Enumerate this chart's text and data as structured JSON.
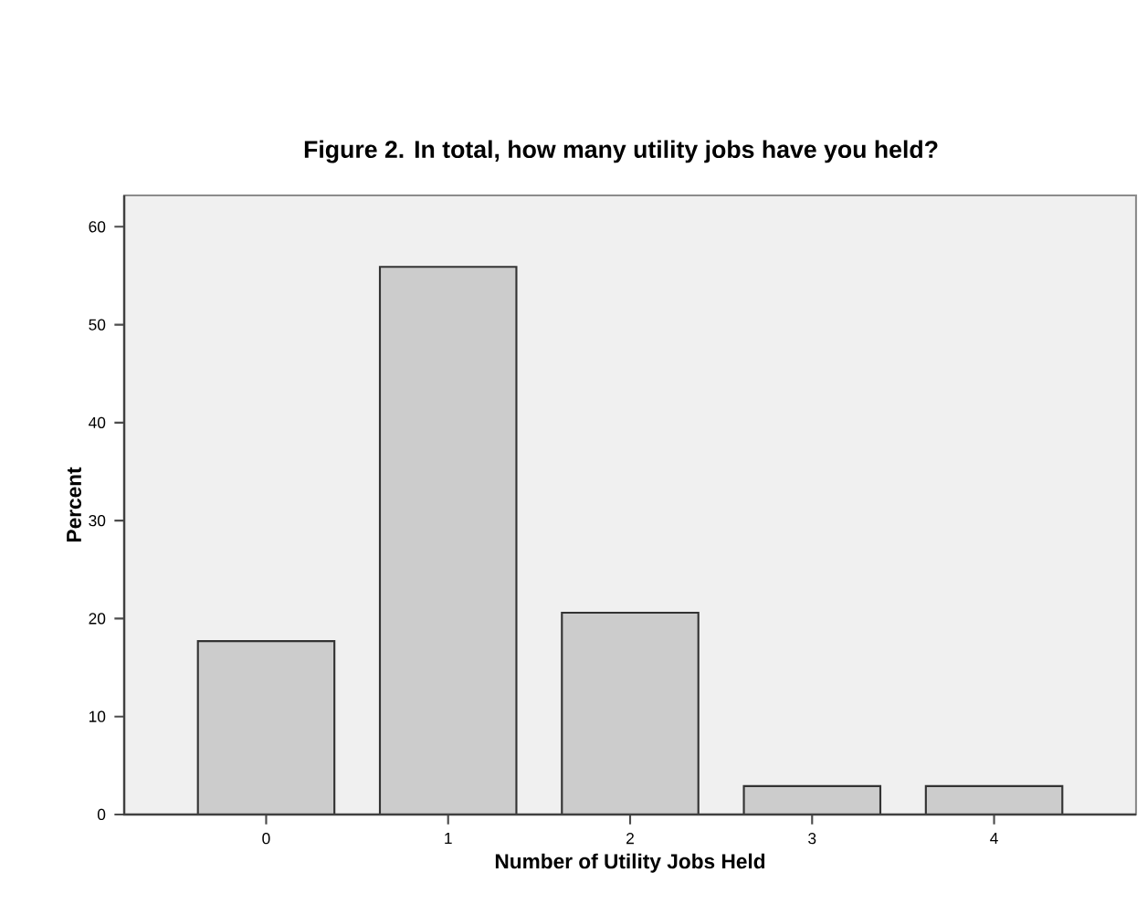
{
  "chart_data": {
    "type": "bar",
    "title": "Figure 2.  In total, how many utility jobs have you held?",
    "xlabel": "Number of Utility Jobs Held",
    "ylabel": "Percent",
    "categories": [
      "0",
      "1",
      "2",
      "3",
      "4"
    ],
    "values": [
      17.7,
      55.9,
      20.6,
      2.9,
      2.9
    ],
    "color": "#cccccc",
    "ylim": [
      0,
      63.2
    ],
    "yticks": [
      0,
      10,
      20,
      30,
      40,
      50,
      60
    ]
  }
}
